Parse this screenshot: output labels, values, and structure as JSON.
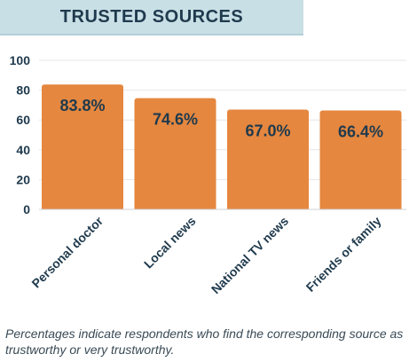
{
  "title": "TRUSTED SOURCES",
  "footnote": "Percentages indicate respondents who find the corresponding source as trustworthy or very trustworthy.",
  "colors": {
    "bar": "#e5873f",
    "title_bg": "#c9dfe6",
    "text": "#1f3a4d",
    "grid": "#e6e6e6"
  },
  "chart_data": {
    "type": "bar",
    "title": "TRUSTED SOURCES",
    "categories": [
      "Personal doctor",
      "Local news",
      "National TV news",
      "Friends or family"
    ],
    "values": [
      83.8,
      74.6,
      67.0,
      66.4
    ],
    "value_labels": [
      "83.8%",
      "74.6%",
      "67.0%",
      "66.4%"
    ],
    "yticks": [
      "0",
      "20",
      "40",
      "60",
      "80",
      "100"
    ],
    "ylim": [
      0,
      100
    ],
    "xlabel": "",
    "ylabel": "",
    "grid": true,
    "legend": "none"
  }
}
